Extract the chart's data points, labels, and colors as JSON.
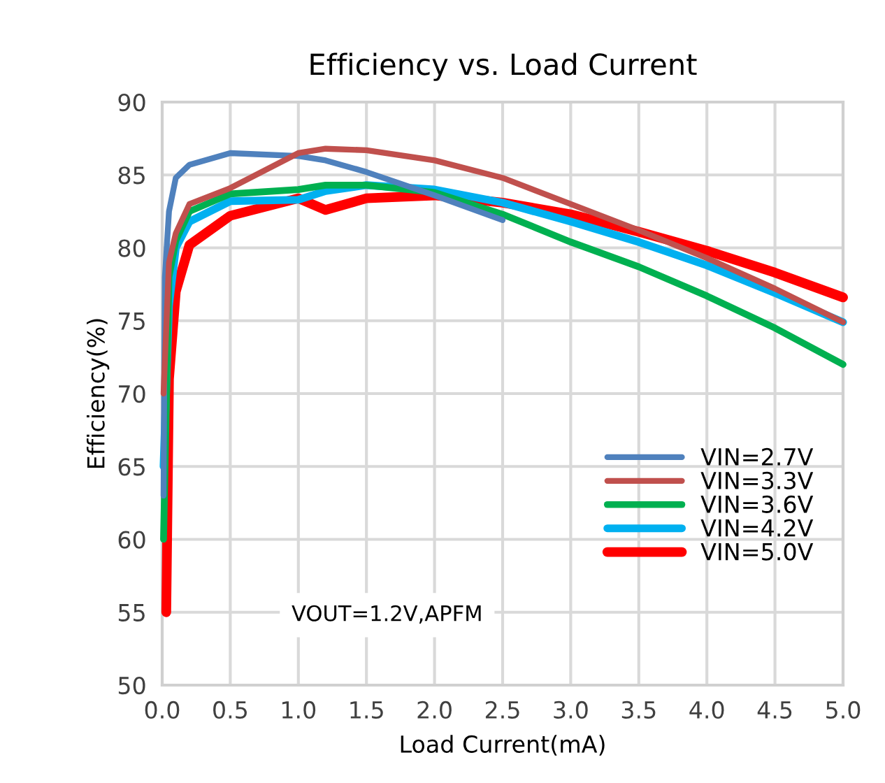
{
  "chart_data": {
    "type": "line",
    "title": "Efficiency vs. Load Current",
    "xlabel": "Load Current(mA)",
    "ylabel": "Efficiency(%)",
    "xlim": [
      0,
      5
    ],
    "xticks": [
      {
        "value": 0,
        "label": "0.0"
      },
      {
        "value": 0.5,
        "label": "0.5"
      },
      {
        "value": 1,
        "label": "1.0"
      },
      {
        "value": 1.5,
        "label": "1.5"
      },
      {
        "value": 2,
        "label": "2.0"
      },
      {
        "value": 2.5,
        "label": "2.5"
      },
      {
        "value": 3,
        "label": "3.0"
      },
      {
        "value": 3.5,
        "label": "3.5"
      },
      {
        "value": 4,
        "label": "4.0"
      },
      {
        "value": 4.5,
        "label": "4.5"
      },
      {
        "value": 5,
        "label": "5.0"
      }
    ],
    "ylim": [
      50,
      90
    ],
    "yticks": [
      50,
      55,
      60,
      65,
      70,
      75,
      80,
      85,
      90
    ],
    "grid": true,
    "legend": "bottom right",
    "marker": "none",
    "line_style": "solid",
    "annotations": [
      "VOUT=1.2V,APFM"
    ],
    "series": [
      {
        "name": "VIN=2.7V",
        "color": "#4f81bd",
        "x": [
          0.01,
          0.02,
          0.05,
          0.1,
          0.2,
          0.5,
          1.0,
          1.2,
          1.5,
          2.0,
          2.5
        ],
        "values": [
          63,
          78,
          82.5,
          84.8,
          85.7,
          86.5,
          86.3,
          86.0,
          85.2,
          83.6,
          81.9
        ]
      },
      {
        "name": "VIN=3.3V",
        "color": "#c0504d",
        "x": [
          0.01,
          0.05,
          0.1,
          0.2,
          0.5,
          1.0,
          1.2,
          1.5,
          2.0,
          2.5,
          3.0,
          3.5,
          4.0,
          4.5,
          5.0
        ],
        "values": [
          70,
          79,
          81,
          83,
          84.1,
          86.5,
          86.8,
          86.7,
          86.0,
          84.8,
          83.0,
          81.2,
          79.3,
          77.2,
          74.9
        ]
      },
      {
        "name": "VIN=3.6V",
        "color": "#00b050",
        "x": [
          0.01,
          0.05,
          0.1,
          0.2,
          0.5,
          1.0,
          1.2,
          1.5,
          2.0,
          2.5,
          3.0,
          3.5,
          4.0,
          4.5,
          5.0
        ],
        "values": [
          60,
          78,
          80.5,
          82.5,
          83.7,
          84.0,
          84.3,
          84.3,
          83.8,
          82.3,
          80.4,
          78.7,
          76.7,
          74.5,
          72.0
        ]
      },
      {
        "name": "VIN=4.2V",
        "color": "#00b0f0",
        "x": [
          0.01,
          0.05,
          0.1,
          0.2,
          0.5,
          1.0,
          1.2,
          1.5,
          2.0,
          2.5,
          3.0,
          3.5,
          4.0,
          4.5,
          5.0
        ],
        "values": [
          65,
          76,
          80,
          81.8,
          83.2,
          83.3,
          83.9,
          84.3,
          84.0,
          83.1,
          81.8,
          80.4,
          78.8,
          76.9,
          74.9
        ]
      },
      {
        "name": "VIN=5.0V",
        "color": "#ff0000",
        "x": [
          0.03,
          0.05,
          0.1,
          0.2,
          0.5,
          1.0,
          1.2,
          1.5,
          2.0,
          2.5,
          3.0,
          3.5,
          4.0,
          4.5,
          5.0
        ],
        "values": [
          55,
          71,
          77,
          80.2,
          82.2,
          83.4,
          82.6,
          83.4,
          83.6,
          83.1,
          82.3,
          81.1,
          79.8,
          78.3,
          76.6
        ]
      }
    ]
  }
}
